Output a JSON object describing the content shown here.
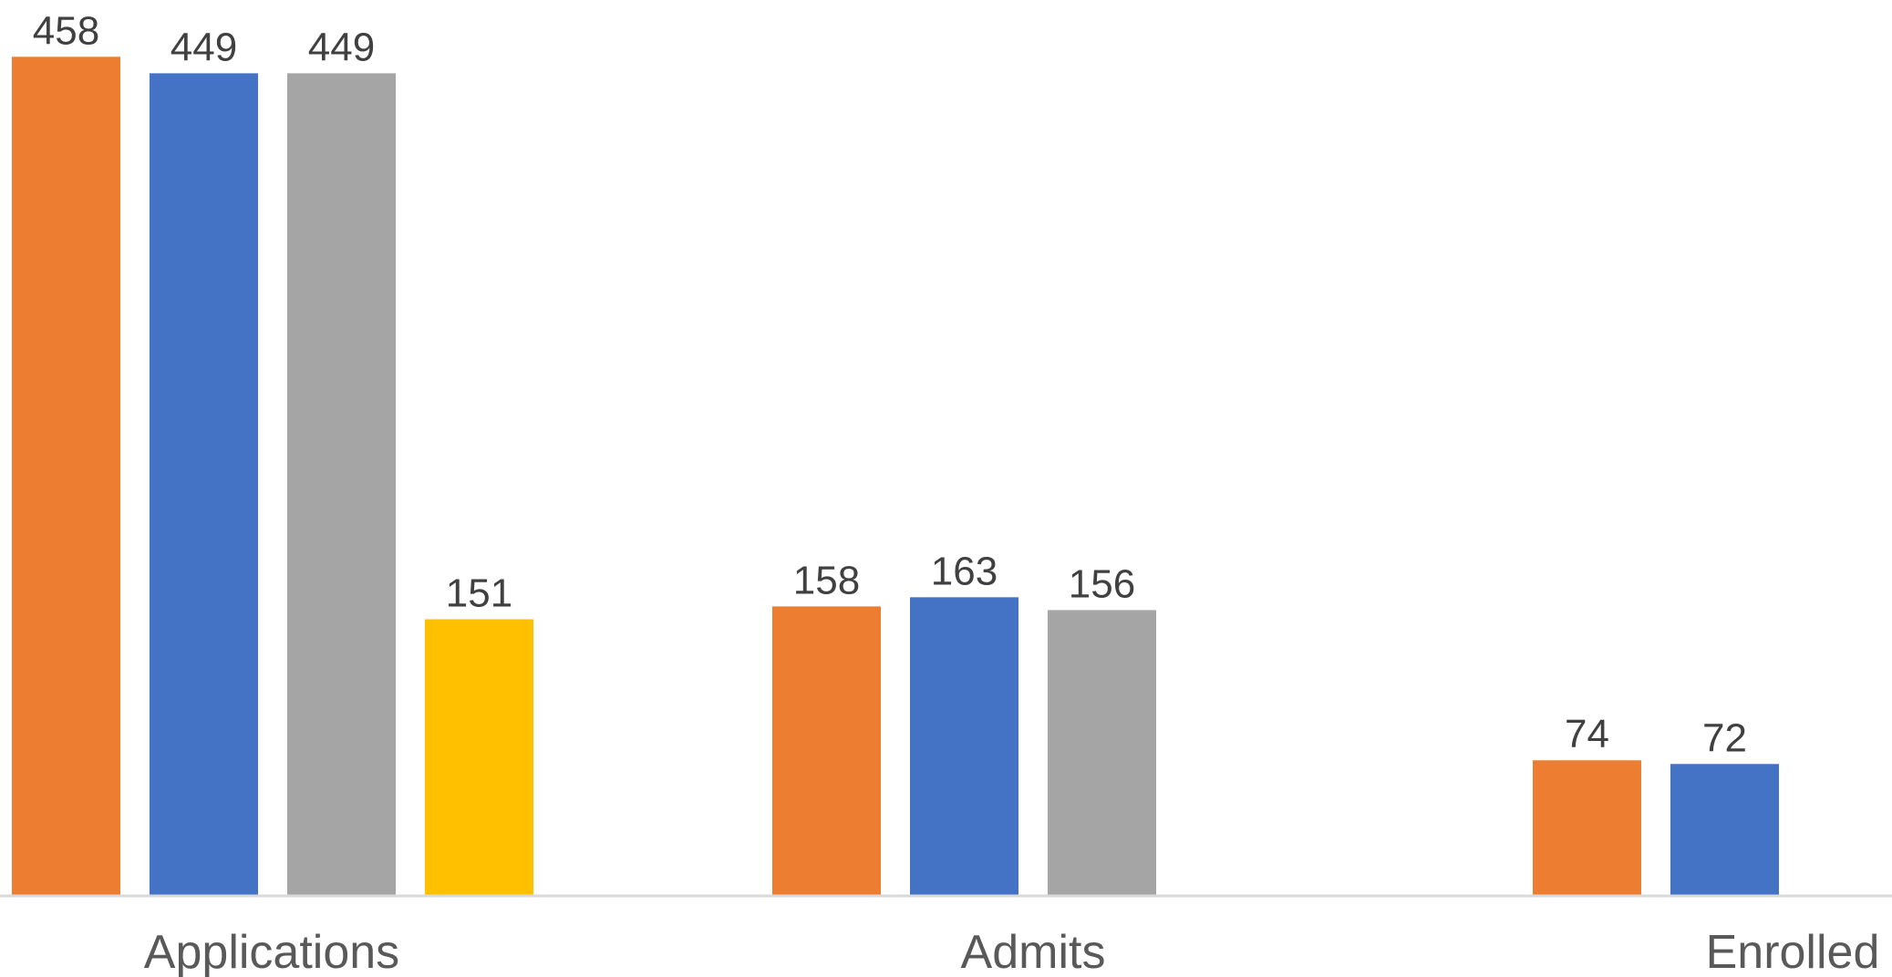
{
  "chart_data": {
    "type": "bar",
    "categories": [
      "Applications",
      "Admits",
      "Enrolled"
    ],
    "series": [
      {
        "color": "#ED7D31",
        "values": [
          458,
          158,
          74
        ]
      },
      {
        "color": "#4472C4",
        "values": [
          449,
          163,
          72
        ]
      },
      {
        "color": "#A5A5A5",
        "values": [
          449,
          156,
          null
        ]
      },
      {
        "color": "#FFC000",
        "values": [
          151,
          null,
          null
        ]
      }
    ],
    "ylim": [
      0,
      489
    ],
    "grid": false,
    "legend": "none",
    "data_labels": true
  }
}
